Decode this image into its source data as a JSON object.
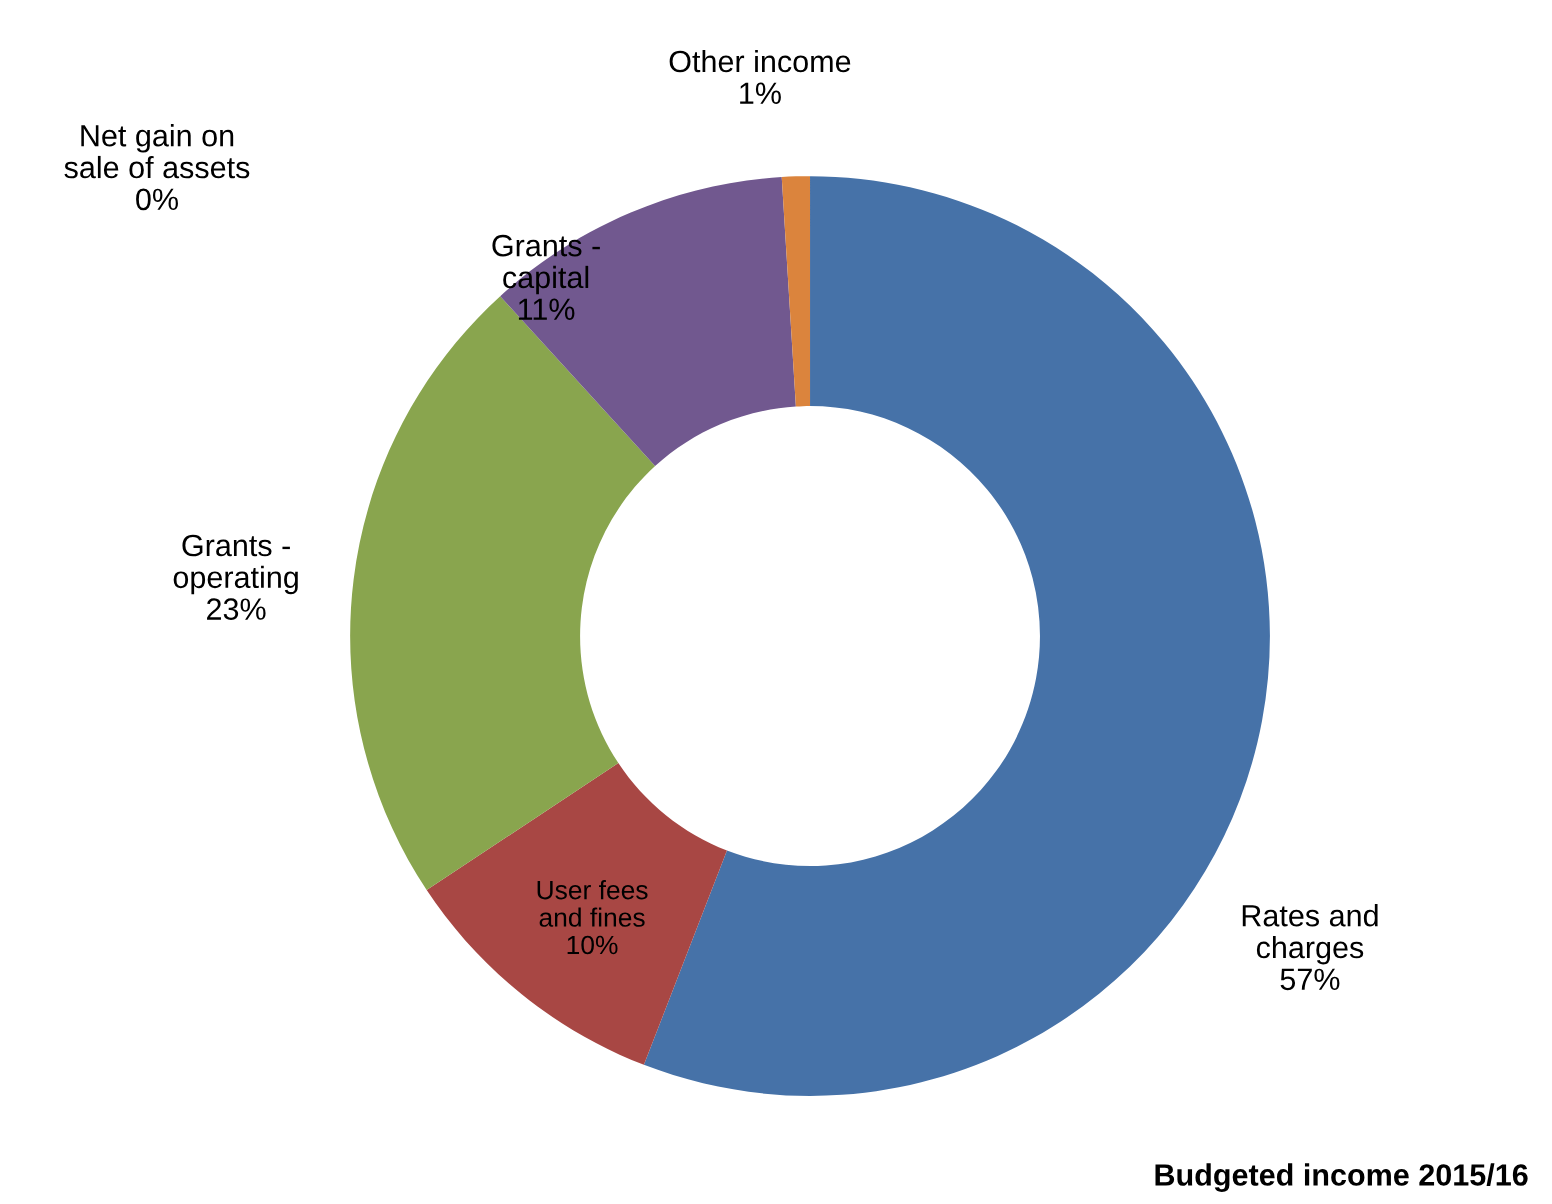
{
  "chart_data": {
    "type": "donut",
    "categories": [
      "Rates and charges",
      "User fees and fines",
      "Grants - operating",
      "Grants - capital",
      "Net gain on sale of assets",
      "Other income"
    ],
    "values": [
      57,
      10,
      23,
      11,
      0,
      1
    ],
    "colors": [
      "#4672a8",
      "#a84744",
      "#89a54e",
      "#71588f",
      "#4198af",
      "#db843d"
    ],
    "value_labels": [
      "57%",
      "10%",
      "23%",
      "11%",
      "0%",
      "1%"
    ],
    "annotations": [
      "Budgeted income 2015/16"
    ],
    "legend": false
  }
}
